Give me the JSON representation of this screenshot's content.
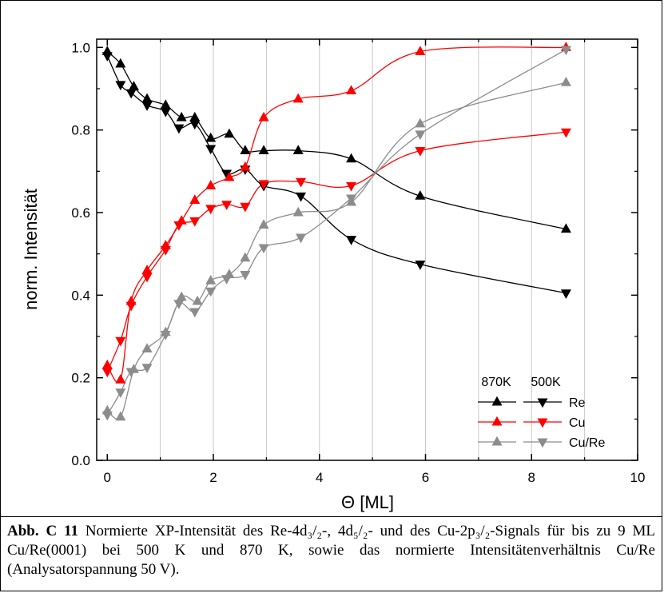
{
  "chart_data": {
    "type": "scatter",
    "xlabel": "Θ [ML]",
    "ylabel": "norm. Intensität",
    "xlim": [
      -0.2,
      10
    ],
    "ylim": [
      0,
      1.02
    ],
    "xticks": [
      "0",
      "2",
      "4",
      "6",
      "8",
      "10"
    ],
    "yticks": [
      "0.0",
      "0.2",
      "0.4",
      "0.6",
      "0.8",
      "1.0"
    ],
    "grid": "vertical",
    "legend": {
      "placement": "bottom-right",
      "headers": [
        "870K",
        "500K"
      ],
      "entries": [
        "Re",
        "Cu",
        "Cu/Re"
      ]
    },
    "series": [
      {
        "name": "Re",
        "temp": "870K",
        "marker": "triangle-up",
        "color": "#000000",
        "x": [
          0,
          0.25,
          0.5,
          0.75,
          1.1,
          1.4,
          1.65,
          1.95,
          2.3,
          2.6,
          2.95,
          3.6,
          4.6,
          5.9,
          8.65
        ],
        "y": [
          0.99,
          0.96,
          0.905,
          0.875,
          0.86,
          0.83,
          0.83,
          0.78,
          0.79,
          0.75,
          0.75,
          0.75,
          0.73,
          0.64,
          0.56
        ]
      },
      {
        "name": "Re",
        "temp": "500K",
        "marker": "triangle-down",
        "color": "#000000",
        "x": [
          0,
          0.25,
          0.45,
          0.75,
          1.1,
          1.35,
          1.65,
          1.95,
          2.25,
          2.6,
          2.95,
          3.65,
          4.6,
          5.9,
          8.65
        ],
        "y": [
          0.98,
          0.91,
          0.89,
          0.86,
          0.845,
          0.805,
          0.815,
          0.755,
          0.695,
          0.705,
          0.665,
          0.64,
          0.535,
          0.475,
          0.405
        ]
      },
      {
        "name": "Cu",
        "temp": "870K",
        "marker": "triangle-up",
        "color": "#ff0000",
        "x": [
          0,
          0.25,
          0.45,
          0.75,
          1.1,
          1.4,
          1.65,
          1.95,
          2.3,
          2.6,
          2.95,
          3.6,
          4.6,
          5.9,
          8.65
        ],
        "y": [
          0.23,
          0.195,
          0.385,
          0.46,
          0.52,
          0.58,
          0.63,
          0.665,
          0.685,
          0.71,
          0.83,
          0.875,
          0.895,
          0.99,
          1.0
        ]
      },
      {
        "name": "Cu",
        "temp": "500K",
        "marker": "triangle-down",
        "color": "#ff0000",
        "x": [
          0,
          0.25,
          0.45,
          0.75,
          1.1,
          1.35,
          1.65,
          1.95,
          2.25,
          2.6,
          2.95,
          3.65,
          4.6,
          5.9,
          8.65
        ],
        "y": [
          0.215,
          0.29,
          0.375,
          0.445,
          0.51,
          0.57,
          0.58,
          0.61,
          0.62,
          0.615,
          0.67,
          0.675,
          0.665,
          0.75,
          0.795
        ]
      },
      {
        "name": "Cu/Re",
        "temp": "870K",
        "marker": "triangle-up",
        "color": "#8c8c8c",
        "x": [
          0,
          0.25,
          0.5,
          0.75,
          1.1,
          1.4,
          1.7,
          1.95,
          2.3,
          2.6,
          2.95,
          3.6,
          4.6,
          5.9,
          8.65
        ],
        "y": [
          0.12,
          0.105,
          0.22,
          0.27,
          0.31,
          0.395,
          0.385,
          0.435,
          0.45,
          0.49,
          0.57,
          0.6,
          0.625,
          0.815,
          0.915
        ]
      },
      {
        "name": "Cu/Re",
        "temp": "500K",
        "marker": "triangle-down",
        "color": "#8c8c8c",
        "x": [
          0,
          0.25,
          0.45,
          0.75,
          1.1,
          1.35,
          1.65,
          1.95,
          2.25,
          2.6,
          2.95,
          3.65,
          4.6,
          5.9,
          8.65
        ],
        "y": [
          0.11,
          0.165,
          0.215,
          0.225,
          0.305,
          0.38,
          0.36,
          0.41,
          0.44,
          0.45,
          0.515,
          0.54,
          0.635,
          0.79,
          0.995
        ]
      }
    ]
  },
  "caption": {
    "label": "Abb. C 11",
    "text": " Normierte XP-Intensität des Re-4d₃/₂-, 4d₅/₂- und des Cu-2p₃/₂-Signals für bis zu 9 ML Cu/Re(0001) bei 500 K und 870 K, sowie das normierte Intensitätenverhältnis Cu/Re (Analysatorspannung 50 V)."
  }
}
